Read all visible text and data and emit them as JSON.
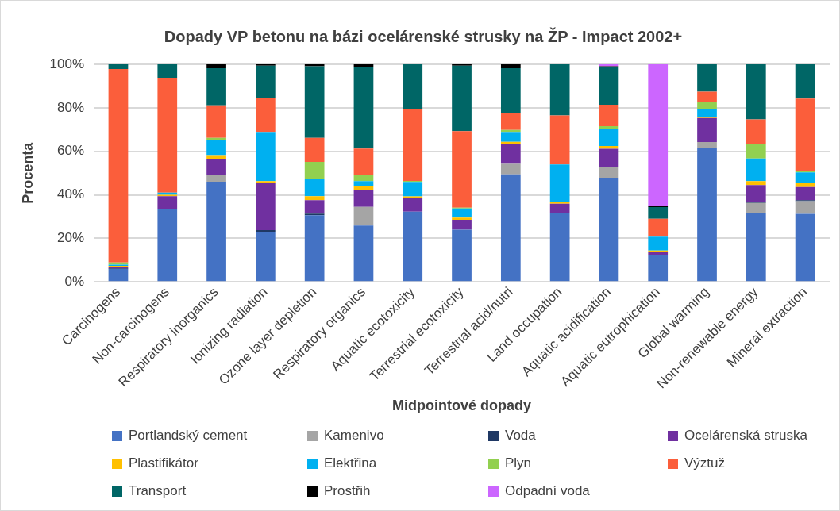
{
  "chart_data": {
    "type": "bar",
    "title": "Dopady VP betonu na bázi ocelárenské strusky na ŽP - Impact 2002+",
    "xlabel": "Midpointové dopady",
    "ylabel": "Procenta",
    "stacked": true,
    "legend": "bottom",
    "grid": "y",
    "categories": [
      "Carcinogens",
      "Non-carcinogens",
      "Respiratory inorganics",
      "Ionizing radiation",
      "Ozone layer depletion",
      "Respiratory organics",
      "Aquatic ecotoxicity",
      "Terrestrial ecotoxicity",
      "Terrestrial acid/nutri",
      "Land occupation",
      "Aquatic acidification",
      "Aquatic eutrophication",
      "Global warming",
      "Non-renewable energy",
      "Mineral extraction"
    ],
    "ylim": [
      0,
      100
    ],
    "yticks": [
      {
        "value": 0,
        "label": "0%"
      },
      {
        "value": 20,
        "label": "20%"
      },
      {
        "value": 40,
        "label": "40%"
      },
      {
        "value": 60,
        "label": "60%"
      },
      {
        "value": 80,
        "label": "80%"
      },
      {
        "value": 100,
        "label": "100%"
      }
    ],
    "series": [
      {
        "name": "Portlandský cement",
        "color": "#4472c4",
        "values": [
          6,
          33.5,
          46.1,
          23.1,
          30.7,
          25.9,
          32.3,
          24,
          49.4,
          31.7,
          47.9,
          12.4,
          61.6,
          31.7,
          31.3
        ]
      },
      {
        "name": "Kamenivo",
        "color": "#a5a5a5",
        "values": [
          0,
          0,
          3.2,
          0,
          0,
          8.6,
          0,
          0,
          4.9,
          0,
          5.1,
          0,
          2.7,
          4.6,
          5.8
        ]
      },
      {
        "name": "Voda",
        "color": "#1f3864",
        "values": [
          0.2,
          0,
          0,
          0.7,
          0.7,
          0,
          0,
          0,
          0,
          0,
          0,
          0,
          0,
          0.5,
          0.5
        ]
      },
      {
        "name": "Ocelárenská struska",
        "color": "#7030a0",
        "values": [
          0.6,
          5.9,
          7.1,
          21.6,
          6.2,
          7.8,
          6.2,
          4.6,
          9.1,
          4.2,
          8.2,
          1.3,
          11,
          7.7,
          6
        ]
      },
      {
        "name": "Plastifikátor",
        "color": "#ffc000",
        "values": [
          0.6,
          0.6,
          1.9,
          0.9,
          1.8,
          1.7,
          0.8,
          1,
          1,
          0.9,
          1.3,
          0.7,
          0.4,
          1.8,
          2.1
        ]
      },
      {
        "name": "Elektřina",
        "color": "#00b0f0",
        "values": [
          0.6,
          1,
          7,
          22.6,
          8.1,
          2.3,
          6.7,
          4.2,
          4.5,
          17.2,
          7.9,
          6.4,
          3.9,
          10.4,
          4.6
        ]
      },
      {
        "name": "Plyn",
        "color": "#92d050",
        "values": [
          1,
          0,
          0.9,
          0,
          7.7,
          2.7,
          0.4,
          0.3,
          0.9,
          0,
          1.2,
          0,
          3.3,
          6.7,
          0.6
        ]
      },
      {
        "name": "Výztuž",
        "color": "#fb5e3b",
        "values": [
          88.8,
          52.8,
          14.9,
          15.8,
          11,
          12.3,
          32.8,
          35.2,
          7.7,
          22.5,
          9.8,
          8.2,
          4.5,
          11.3,
          33.3
        ]
      },
      {
        "name": "Transport",
        "color": "#006666",
        "values": [
          2.2,
          6.2,
          17.1,
          14.7,
          32.9,
          37.5,
          20.8,
          30.1,
          20.7,
          23.5,
          17.1,
          5.4,
          12.6,
          25.3,
          15.8
        ]
      },
      {
        "name": "Prostřih",
        "color": "#000000",
        "values": [
          0,
          0,
          1.8,
          0.6,
          0.9,
          1.2,
          0,
          0.6,
          1.8,
          0,
          0.6,
          0.6,
          0,
          0,
          0
        ]
      },
      {
        "name": "Odpadní voda",
        "color": "#cc66ff",
        "values": [
          0,
          0,
          0,
          0,
          0,
          0,
          0,
          0,
          0,
          0,
          0.9,
          65,
          0,
          0,
          0
        ]
      }
    ]
  }
}
